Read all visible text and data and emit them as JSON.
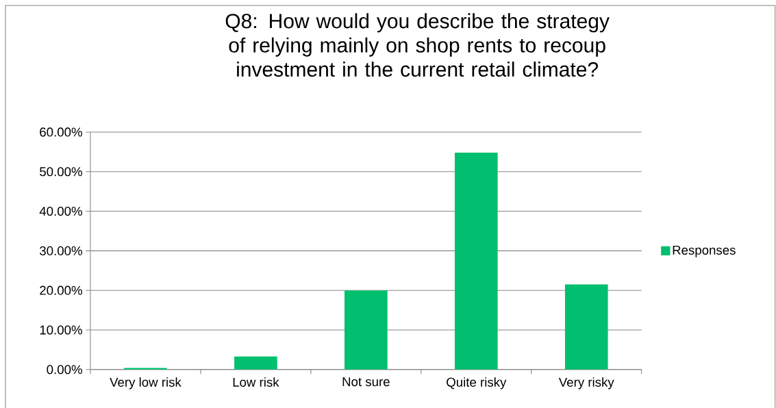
{
  "chart_data": {
    "type": "bar",
    "title": "Q8: How would you describe the strategy of relying mainly on shop rents to recoup investment in the current retail climate?",
    "categories": [
      "Very low risk",
      "Low risk",
      "Not sure",
      "Quite risky",
      "Very risky"
    ],
    "series": [
      {
        "name": "Responses",
        "color": "#00bf6f",
        "values": [
          0.4,
          3.3,
          20.0,
          54.8,
          21.5
        ]
      }
    ],
    "ylim": [
      0,
      60
    ],
    "yticks": [
      {
        "value": 0,
        "label": "0.00%"
      },
      {
        "value": 10,
        "label": "10.00%"
      },
      {
        "value": 20,
        "label": "20.00%"
      },
      {
        "value": 30,
        "label": "30.00%"
      },
      {
        "value": 40,
        "label": "40.00%"
      },
      {
        "value": 50,
        "label": "50.00%"
      },
      {
        "value": 60,
        "label": "60.00%"
      }
    ],
    "grid": "y",
    "legend": "right"
  }
}
